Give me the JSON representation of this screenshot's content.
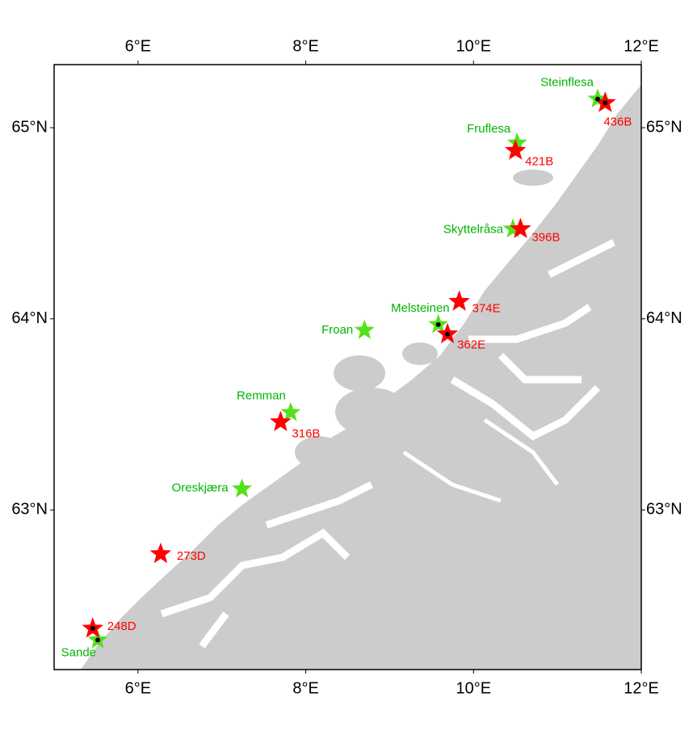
{
  "map": {
    "xlim": [
      5,
      12
    ],
    "ylim": [
      62.165,
      65.33
    ],
    "xticks": [
      {
        "value": 6,
        "label": "6°E"
      },
      {
        "value": 8,
        "label": "8°E"
      },
      {
        "value": 10,
        "label": "10°E"
      },
      {
        "value": 12,
        "label": "12°E"
      }
    ],
    "yticks": [
      {
        "value": 63,
        "label": "63°N"
      },
      {
        "value": 64,
        "label": "64°N"
      },
      {
        "value": 65,
        "label": "65°N"
      }
    ],
    "groups": [
      {
        "color": "#55e01c",
        "label_color": "#00b400",
        "sites": [
          {
            "name": "Steinflesa",
            "lon": 11.48,
            "lat": 65.15,
            "dot": true
          },
          {
            "name": "Fruflesa",
            "lon": 10.52,
            "lat": 64.92,
            "dot": false
          },
          {
            "name": "Skyttelråsa",
            "lon": 10.47,
            "lat": 64.47,
            "dot": false
          },
          {
            "name": "Melsteinen",
            "lon": 9.58,
            "lat": 63.97,
            "dot": true
          },
          {
            "name": "Froan",
            "lon": 8.7,
            "lat": 63.94,
            "dot": false
          },
          {
            "name": "Remman",
            "lon": 7.82,
            "lat": 63.51,
            "dot": false
          },
          {
            "name": "Oreskjæra",
            "lon": 7.24,
            "lat": 63.11,
            "dot": false
          },
          {
            "name": "Sande",
            "lon": 5.52,
            "lat": 62.32,
            "dot": true
          }
        ]
      },
      {
        "color": "#ff0000",
        "label_color": "#ff0000",
        "sites": [
          {
            "name": "436B",
            "lon": 11.57,
            "lat": 65.13,
            "dot": true
          },
          {
            "name": "421B",
            "lon": 10.5,
            "lat": 64.88,
            "dot": false
          },
          {
            "name": "396B",
            "lon": 10.56,
            "lat": 64.47,
            "dot": false
          },
          {
            "name": "374E",
            "lon": 9.83,
            "lat": 64.09,
            "dot": false
          },
          {
            "name": "362E",
            "lon": 9.69,
            "lat": 63.92,
            "dot": true
          },
          {
            "name": "316B",
            "lon": 7.7,
            "lat": 63.46,
            "dot": false
          },
          {
            "name": "273D",
            "lon": 6.27,
            "lat": 62.77,
            "dot": false
          },
          {
            "name": "248D",
            "lon": 5.46,
            "lat": 62.38,
            "dot": true
          }
        ]
      }
    ]
  }
}
